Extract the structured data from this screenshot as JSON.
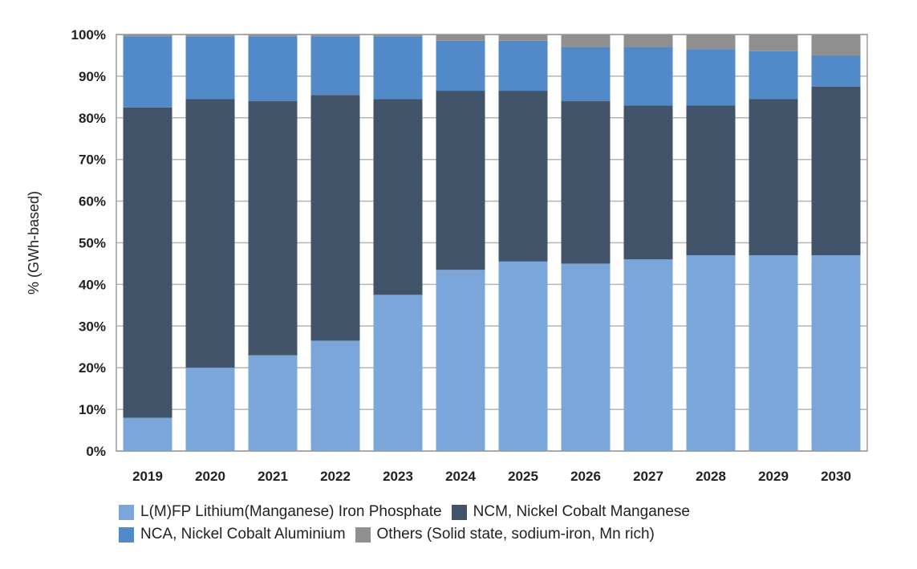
{
  "chart_data": {
    "type": "bar",
    "stacked": true,
    "categories": [
      "2019",
      "2020",
      "2021",
      "2022",
      "2023",
      "2024",
      "2025",
      "2026",
      "2027",
      "2028",
      "2029",
      "2030"
    ],
    "series": [
      {
        "name": "L(M)FP Lithium(Manganese) Iron Phosphate",
        "color": "#7ba6d9",
        "values": [
          8,
          20,
          23,
          26.5,
          37.5,
          43.5,
          45.5,
          45,
          46,
          47,
          47,
          47
        ]
      },
      {
        "name": "NCM, Nickel Cobalt Manganese",
        "color": "#42546a",
        "values": [
          74.5,
          64.5,
          61,
          59,
          47,
          43,
          41,
          39,
          37,
          36,
          37.5,
          40.5
        ]
      },
      {
        "name": "NCA, Nickel Cobalt Aluminium",
        "color": "#5289c8",
        "values": [
          17,
          15,
          15.5,
          14,
          15,
          12,
          12,
          13,
          14,
          13.5,
          11.5,
          7.5
        ]
      },
      {
        "name": "Others (Solid state, sodium-iron, Mn rich)",
        "color": "#8f8f8f",
        "values": [
          0.5,
          0.5,
          0.5,
          0.5,
          0.5,
          1.5,
          1.5,
          3,
          3,
          3.5,
          4,
          5
        ]
      }
    ],
    "ylabel": "% (GWh-based)",
    "xlabel": "",
    "ylim": [
      0,
      100
    ],
    "yticks": [
      "0%",
      "10%",
      "20%",
      "30%",
      "40%",
      "50%",
      "60%",
      "70%",
      "80%",
      "90%",
      "100%"
    ],
    "grid": true,
    "legend_position": "bottom"
  }
}
